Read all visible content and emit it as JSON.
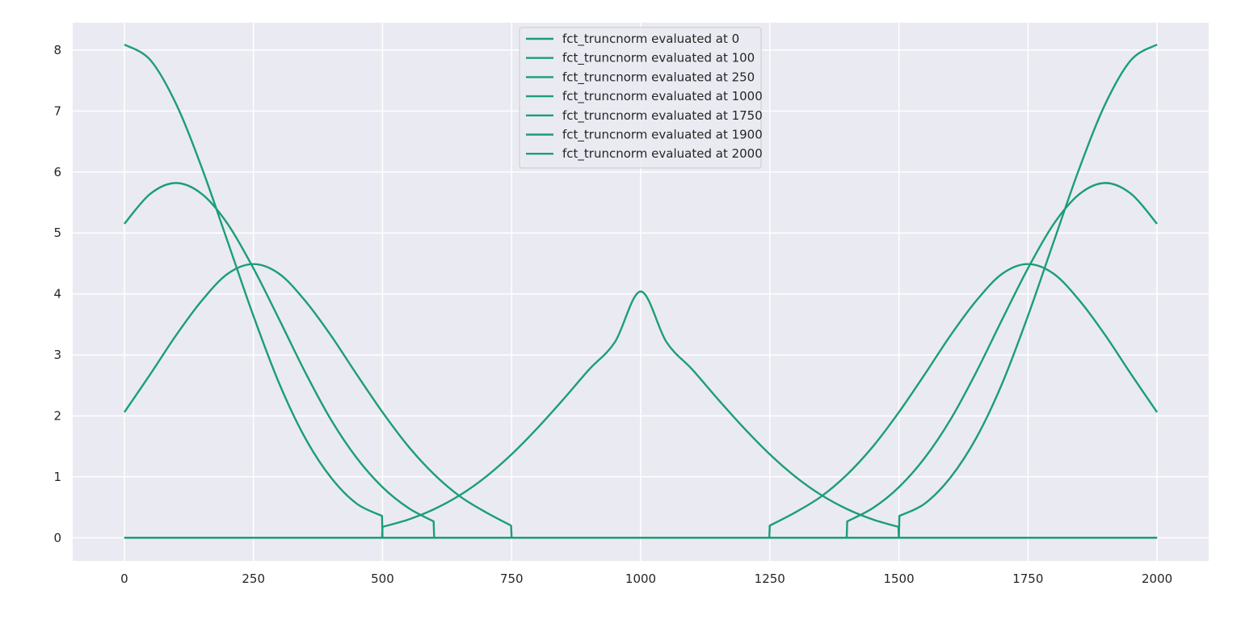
{
  "chart_data": {
    "type": "line",
    "title": "",
    "xlabel": "",
    "ylabel": "",
    "xlim": [
      -100,
      2100
    ],
    "ylim": [
      -0.38,
      8.45
    ],
    "x_ticks": [
      0,
      250,
      500,
      750,
      1000,
      1250,
      1500,
      1750,
      2000
    ],
    "y_ticks": [
      0,
      1,
      2,
      3,
      4,
      5,
      6,
      7,
      8
    ],
    "grid": true,
    "legend_position": "top-center",
    "line_color": "#1b9e77",
    "background_color": "#eaeaf2",
    "grid_color": "#ffffff",
    "series": [
      {
        "name": "fct_truncnorm evaluated at 0",
        "x": [
          0,
          50,
          100,
          150,
          200,
          250,
          300,
          350,
          400,
          450,
          499,
          500,
          2000
        ],
        "y": [
          8.09,
          7.84,
          7.12,
          6.07,
          4.86,
          3.64,
          2.53,
          1.64,
          0.99,
          0.56,
          0.36,
          0.0,
          0.0
        ]
      },
      {
        "name": "fct_truncnorm evaluated at 100",
        "x": [
          0,
          50,
          100,
          150,
          200,
          250,
          300,
          350,
          400,
          450,
          500,
          550,
          599,
          600,
          2000
        ],
        "y": [
          5.15,
          5.64,
          5.82,
          5.64,
          5.15,
          4.42,
          3.58,
          2.72,
          1.94,
          1.31,
          0.83,
          0.49,
          0.27,
          0.0,
          0.0
        ]
      },
      {
        "name": "fct_truncnorm evaluated at 250",
        "x": [
          0,
          50,
          100,
          150,
          200,
          250,
          300,
          350,
          400,
          450,
          500,
          550,
          600,
          650,
          700,
          749,
          750,
          2000
        ],
        "y": [
          2.06,
          2.68,
          3.32,
          3.89,
          4.33,
          4.49,
          4.33,
          3.89,
          3.32,
          2.68,
          2.06,
          1.5,
          1.04,
          0.68,
          0.42,
          0.2,
          0.0,
          0.0
        ]
      },
      {
        "name": "fct_truncnorm evaluated at 1000",
        "x": [
          0,
          499,
          500,
          550,
          600,
          650,
          700,
          750,
          800,
          850,
          900,
          950,
          1000,
          1050,
          1100,
          1150,
          1200,
          1250,
          1300,
          1350,
          1400,
          1450,
          1499,
          1500,
          2000
        ],
        "y": [
          0.0,
          0.0,
          0.18,
          0.3,
          0.47,
          0.7,
          1.0,
          1.37,
          1.8,
          2.27,
          2.76,
          3.21,
          4.04,
          3.21,
          2.76,
          2.27,
          1.8,
          1.37,
          1.0,
          0.7,
          0.47,
          0.3,
          0.18,
          0.0,
          0.0
        ]
      },
      {
        "name": "fct_truncnorm evaluated at 1750",
        "x": [
          0,
          1249,
          1250,
          1300,
          1350,
          1400,
          1450,
          1500,
          1550,
          1600,
          1650,
          1700,
          1750,
          1800,
          1850,
          1900,
          1950,
          2000
        ],
        "y": [
          0.0,
          0.0,
          0.2,
          0.42,
          0.68,
          1.04,
          1.5,
          2.06,
          2.68,
          3.32,
          3.89,
          4.33,
          4.49,
          4.33,
          3.89,
          3.32,
          2.68,
          2.06
        ]
      },
      {
        "name": "fct_truncnorm evaluated at 1900",
        "x": [
          0,
          1399,
          1400,
          1450,
          1500,
          1550,
          1600,
          1650,
          1700,
          1750,
          1800,
          1850,
          1900,
          1950,
          2000
        ],
        "y": [
          0.0,
          0.0,
          0.27,
          0.49,
          0.83,
          1.31,
          1.94,
          2.72,
          3.58,
          4.42,
          5.15,
          5.64,
          5.82,
          5.64,
          5.15
        ]
      },
      {
        "name": "fct_truncnorm evaluated at 2000",
        "x": [
          0,
          1500,
          1501,
          1550,
          1600,
          1650,
          1700,
          1750,
          1800,
          1850,
          1900,
          1950,
          2000
        ],
        "y": [
          0.0,
          0.0,
          0.36,
          0.56,
          0.99,
          1.64,
          2.53,
          3.64,
          4.86,
          6.07,
          7.12,
          7.84,
          8.09
        ]
      }
    ]
  }
}
